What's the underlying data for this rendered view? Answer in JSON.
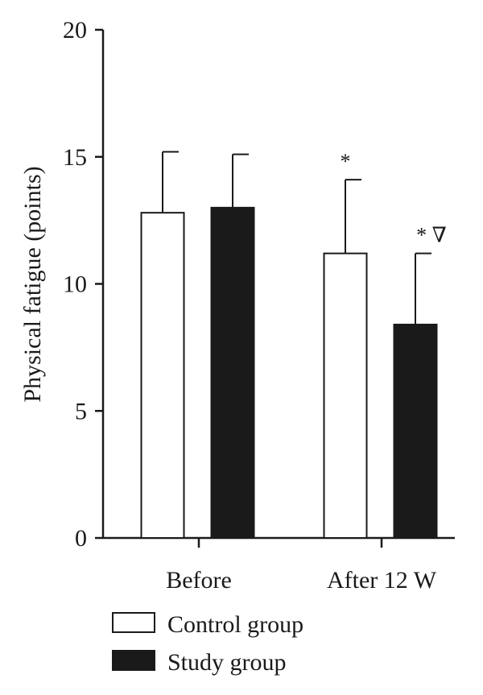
{
  "chart_data": {
    "type": "bar",
    "title": "",
    "xlabel": "",
    "ylabel": "Physical fatigue (points)",
    "ylim": [
      0,
      20
    ],
    "yticks": [
      0,
      5,
      10,
      15,
      20
    ],
    "categories": [
      "Before",
      "After 12 W"
    ],
    "series": [
      {
        "name": "Control group",
        "color": "#ffffff",
        "values": [
          12.8,
          11.2
        ],
        "errors": [
          2.4,
          2.9
        ],
        "annotations": [
          "",
          "*"
        ]
      },
      {
        "name": "Study group",
        "color": "#1a1a1a",
        "values": [
          13.0,
          8.4
        ],
        "errors": [
          2.1,
          2.8
        ],
        "annotations": [
          "",
          "* ∇"
        ]
      }
    ],
    "grid": false,
    "legend_position": "bottom-left"
  }
}
